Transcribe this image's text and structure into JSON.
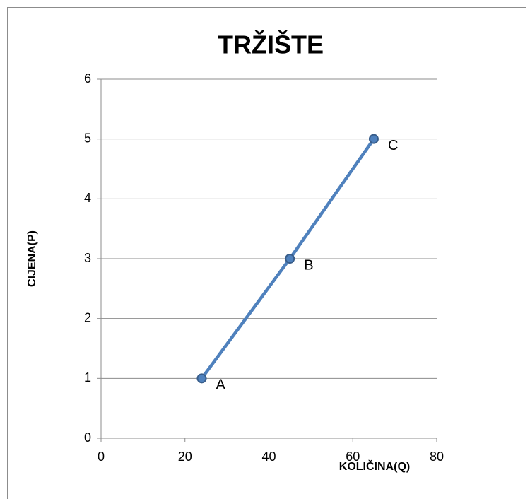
{
  "chart_data": {
    "type": "line",
    "title": "TRŽIŠTE",
    "xlabel": "KOLIČINA(Q)",
    "ylabel": "CIJENA(P)",
    "x": [
      24,
      45,
      65
    ],
    "values": [
      1,
      3,
      5
    ],
    "point_labels": [
      "A",
      "B",
      "C"
    ],
    "color": "#4f81bd",
    "marker_edge_color": "#385d8a",
    "xlim": [
      0,
      80
    ],
    "xticks": [
      0,
      20,
      40,
      60,
      80
    ],
    "ylim": [
      0,
      6
    ],
    "yticks": [
      0,
      1,
      2,
      3,
      4,
      5,
      6
    ],
    "grid": true
  }
}
